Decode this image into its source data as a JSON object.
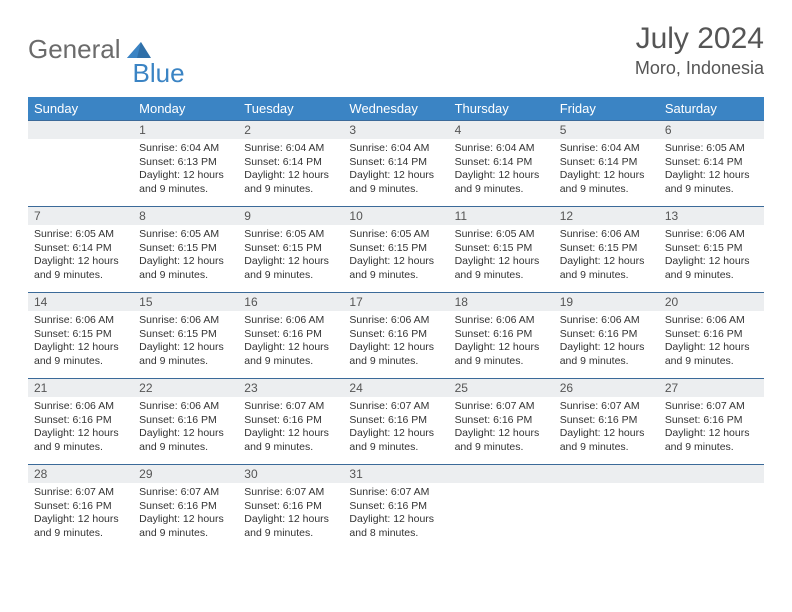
{
  "brand": {
    "word1": "General",
    "word2": "Blue",
    "color1": "#6b6b6b",
    "color2": "#3b84c4"
  },
  "title": "July 2024",
  "location": "Moro, Indonesia",
  "colors": {
    "header_bg": "#3b84c4",
    "header_fg": "#ffffff",
    "row_border": "#3b6a99",
    "daynum_bg": "#eceef0",
    "text": "#333333"
  },
  "columns": [
    "Sunday",
    "Monday",
    "Tuesday",
    "Wednesday",
    "Thursday",
    "Friday",
    "Saturday"
  ],
  "weeks": [
    [
      {
        "n": "",
        "lines": []
      },
      {
        "n": "1",
        "lines": [
          "Sunrise: 6:04 AM",
          "Sunset: 6:13 PM",
          "Daylight: 12 hours and 9 minutes."
        ]
      },
      {
        "n": "2",
        "lines": [
          "Sunrise: 6:04 AM",
          "Sunset: 6:14 PM",
          "Daylight: 12 hours and 9 minutes."
        ]
      },
      {
        "n": "3",
        "lines": [
          "Sunrise: 6:04 AM",
          "Sunset: 6:14 PM",
          "Daylight: 12 hours and 9 minutes."
        ]
      },
      {
        "n": "4",
        "lines": [
          "Sunrise: 6:04 AM",
          "Sunset: 6:14 PM",
          "Daylight: 12 hours and 9 minutes."
        ]
      },
      {
        "n": "5",
        "lines": [
          "Sunrise: 6:04 AM",
          "Sunset: 6:14 PM",
          "Daylight: 12 hours and 9 minutes."
        ]
      },
      {
        "n": "6",
        "lines": [
          "Sunrise: 6:05 AM",
          "Sunset: 6:14 PM",
          "Daylight: 12 hours and 9 minutes."
        ]
      }
    ],
    [
      {
        "n": "7",
        "lines": [
          "Sunrise: 6:05 AM",
          "Sunset: 6:14 PM",
          "Daylight: 12 hours and 9 minutes."
        ]
      },
      {
        "n": "8",
        "lines": [
          "Sunrise: 6:05 AM",
          "Sunset: 6:15 PM",
          "Daylight: 12 hours and 9 minutes."
        ]
      },
      {
        "n": "9",
        "lines": [
          "Sunrise: 6:05 AM",
          "Sunset: 6:15 PM",
          "Daylight: 12 hours and 9 minutes."
        ]
      },
      {
        "n": "10",
        "lines": [
          "Sunrise: 6:05 AM",
          "Sunset: 6:15 PM",
          "Daylight: 12 hours and 9 minutes."
        ]
      },
      {
        "n": "11",
        "lines": [
          "Sunrise: 6:05 AM",
          "Sunset: 6:15 PM",
          "Daylight: 12 hours and 9 minutes."
        ]
      },
      {
        "n": "12",
        "lines": [
          "Sunrise: 6:06 AM",
          "Sunset: 6:15 PM",
          "Daylight: 12 hours and 9 minutes."
        ]
      },
      {
        "n": "13",
        "lines": [
          "Sunrise: 6:06 AM",
          "Sunset: 6:15 PM",
          "Daylight: 12 hours and 9 minutes."
        ]
      }
    ],
    [
      {
        "n": "14",
        "lines": [
          "Sunrise: 6:06 AM",
          "Sunset: 6:15 PM",
          "Daylight: 12 hours and 9 minutes."
        ]
      },
      {
        "n": "15",
        "lines": [
          "Sunrise: 6:06 AM",
          "Sunset: 6:15 PM",
          "Daylight: 12 hours and 9 minutes."
        ]
      },
      {
        "n": "16",
        "lines": [
          "Sunrise: 6:06 AM",
          "Sunset: 6:16 PM",
          "Daylight: 12 hours and 9 minutes."
        ]
      },
      {
        "n": "17",
        "lines": [
          "Sunrise: 6:06 AM",
          "Sunset: 6:16 PM",
          "Daylight: 12 hours and 9 minutes."
        ]
      },
      {
        "n": "18",
        "lines": [
          "Sunrise: 6:06 AM",
          "Sunset: 6:16 PM",
          "Daylight: 12 hours and 9 minutes."
        ]
      },
      {
        "n": "19",
        "lines": [
          "Sunrise: 6:06 AM",
          "Sunset: 6:16 PM",
          "Daylight: 12 hours and 9 minutes."
        ]
      },
      {
        "n": "20",
        "lines": [
          "Sunrise: 6:06 AM",
          "Sunset: 6:16 PM",
          "Daylight: 12 hours and 9 minutes."
        ]
      }
    ],
    [
      {
        "n": "21",
        "lines": [
          "Sunrise: 6:06 AM",
          "Sunset: 6:16 PM",
          "Daylight: 12 hours and 9 minutes."
        ]
      },
      {
        "n": "22",
        "lines": [
          "Sunrise: 6:06 AM",
          "Sunset: 6:16 PM",
          "Daylight: 12 hours and 9 minutes."
        ]
      },
      {
        "n": "23",
        "lines": [
          "Sunrise: 6:07 AM",
          "Sunset: 6:16 PM",
          "Daylight: 12 hours and 9 minutes."
        ]
      },
      {
        "n": "24",
        "lines": [
          "Sunrise: 6:07 AM",
          "Sunset: 6:16 PM",
          "Daylight: 12 hours and 9 minutes."
        ]
      },
      {
        "n": "25",
        "lines": [
          "Sunrise: 6:07 AM",
          "Sunset: 6:16 PM",
          "Daylight: 12 hours and 9 minutes."
        ]
      },
      {
        "n": "26",
        "lines": [
          "Sunrise: 6:07 AM",
          "Sunset: 6:16 PM",
          "Daylight: 12 hours and 9 minutes."
        ]
      },
      {
        "n": "27",
        "lines": [
          "Sunrise: 6:07 AM",
          "Sunset: 6:16 PM",
          "Daylight: 12 hours and 9 minutes."
        ]
      }
    ],
    [
      {
        "n": "28",
        "lines": [
          "Sunrise: 6:07 AM",
          "Sunset: 6:16 PM",
          "Daylight: 12 hours and 9 minutes."
        ]
      },
      {
        "n": "29",
        "lines": [
          "Sunrise: 6:07 AM",
          "Sunset: 6:16 PM",
          "Daylight: 12 hours and 9 minutes."
        ]
      },
      {
        "n": "30",
        "lines": [
          "Sunrise: 6:07 AM",
          "Sunset: 6:16 PM",
          "Daylight: 12 hours and 9 minutes."
        ]
      },
      {
        "n": "31",
        "lines": [
          "Sunrise: 6:07 AM",
          "Sunset: 6:16 PM",
          "Daylight: 12 hours and 8 minutes."
        ]
      },
      {
        "n": "",
        "lines": []
      },
      {
        "n": "",
        "lines": []
      },
      {
        "n": "",
        "lines": []
      }
    ]
  ]
}
